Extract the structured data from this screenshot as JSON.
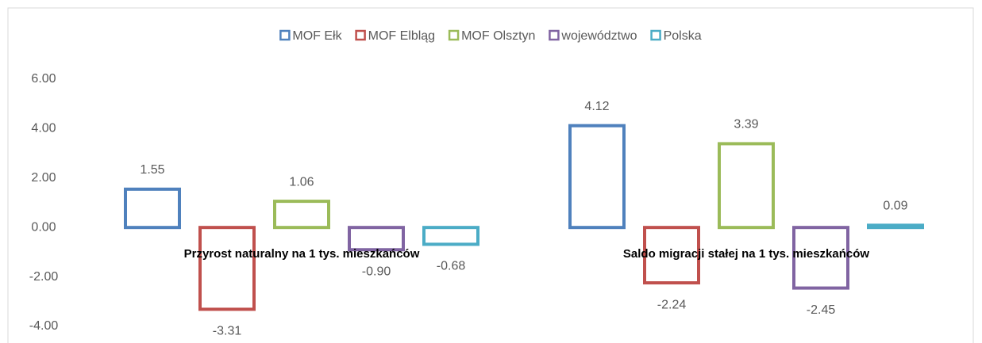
{
  "chart_data": {
    "type": "bar",
    "categories": [
      "Przyrost naturalny na 1 tys. mieszkańców",
      "Saldo migracji stałej na 1 tys. mieszkańców"
    ],
    "series": [
      {
        "name": "MOF Ełk",
        "color": "#4f81bd",
        "values": [
          1.55,
          4.12
        ]
      },
      {
        "name": "MOF Elbląg",
        "color": "#c0504d",
        "values": [
          -3.31,
          -2.24
        ]
      },
      {
        "name": "MOF Olsztyn",
        "color": "#9bbb59",
        "values": [
          1.06,
          3.39
        ]
      },
      {
        "name": "województwo",
        "color": "#8064a2",
        "values": [
          -0.9,
          -2.45
        ],
        "value_labels": [
          "-0.90",
          "-2.45"
        ]
      },
      {
        "name": "Polska",
        "color": "#4bacc6",
        "values": [
          -0.68,
          0.09
        ]
      }
    ],
    "ylim": [
      -4.7,
      6
    ],
    "yticks": [
      {
        "value": -4,
        "label": "-4.00"
      },
      {
        "value": -2,
        "label": "-2.00"
      },
      {
        "value": 0,
        "label": "0.00"
      },
      {
        "value": 2,
        "label": "2.00"
      },
      {
        "value": 4,
        "label": "4.00"
      },
      {
        "value": 6,
        "label": "6.00"
      }
    ],
    "legend": "top",
    "grid": false
  }
}
